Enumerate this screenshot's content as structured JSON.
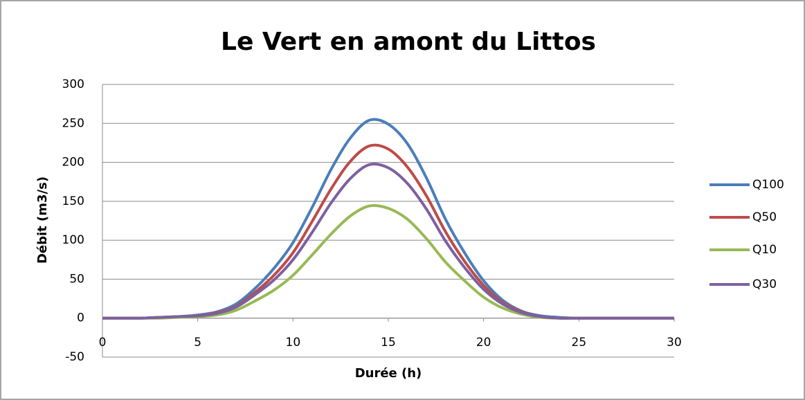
{
  "chart_data": {
    "type": "line",
    "title": "Le Vert en amont du Littos",
    "x_label": "Durée (h)",
    "y_label": "Débit (m3/s)",
    "x": [
      0,
      1,
      2,
      3,
      4,
      5,
      6,
      7,
      8,
      9,
      10,
      11,
      12,
      13,
      14,
      15,
      16,
      17,
      18,
      19,
      20,
      21,
      22,
      23,
      24,
      25,
      26,
      27,
      28,
      29,
      30
    ],
    "series": [
      {
        "name": "Q100",
        "color": "#4a7ebb",
        "values": [
          0,
          0,
          0,
          1,
          2,
          4,
          8,
          18,
          38,
          64,
          97,
          142,
          191,
          231,
          254,
          249,
          224,
          180,
          127,
          84,
          48,
          23,
          9,
          3,
          1,
          0,
          0,
          0,
          0,
          0,
          0
        ]
      },
      {
        "name": "Q50",
        "color": "#be4b48",
        "values": [
          0,
          0,
          0,
          1,
          2,
          3,
          7,
          15,
          33,
          55,
          84,
          124,
          166,
          201,
          221,
          217,
          194,
          157,
          111,
          73,
          42,
          20,
          8,
          2,
          0,
          0,
          0,
          0,
          0,
          0,
          0
        ]
      },
      {
        "name": "Q10",
        "color": "#98b954",
        "values": [
          0,
          0,
          0,
          0,
          1,
          2,
          4,
          10,
          22,
          36,
          55,
          81,
          108,
          131,
          144,
          141,
          127,
          102,
          72,
          48,
          27,
          13,
          5,
          1,
          0,
          0,
          0,
          0,
          0,
          0,
          0
        ]
      },
      {
        "name": "Q30",
        "color": "#7d60a0",
        "values": [
          0,
          0,
          0,
          1,
          2,
          3,
          6,
          14,
          30,
          49,
          75,
          110,
          148,
          179,
          197,
          193,
          173,
          140,
          99,
          65,
          37,
          18,
          7,
          2,
          0,
          0,
          0,
          0,
          0,
          0,
          0
        ]
      }
    ],
    "xlim": [
      0,
      30
    ],
    "xticks": [
      0,
      5,
      10,
      15,
      20,
      25,
      30
    ],
    "ylim": [
      -50,
      300
    ],
    "yticks": [
      -50,
      0,
      50,
      100,
      150,
      200,
      250,
      300
    ],
    "grid": true,
    "legend": "right"
  }
}
